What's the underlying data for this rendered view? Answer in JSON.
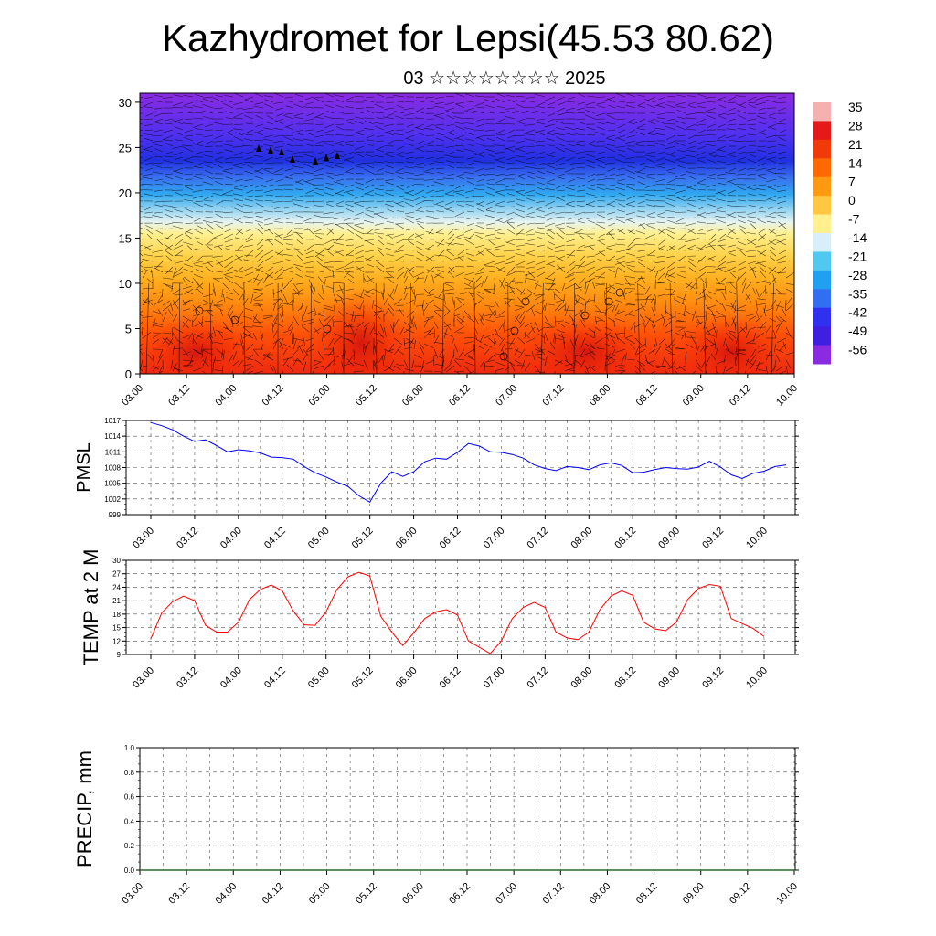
{
  "header": {
    "title": "Kazhydromet for Lepsi(45.53 80.62)",
    "subtitle": "03 ☆☆☆☆☆☆☆☆ 2025"
  },
  "colorbar": {
    "labels": [
      "35",
      "28",
      "21",
      "14",
      "7",
      "0",
      "-7",
      "-14",
      "-21",
      "-28",
      "-35",
      "-42",
      "-49",
      "-56"
    ],
    "colors": [
      "#f5b0b0",
      "#e41a1a",
      "#f03a0a",
      "#ff6a00",
      "#ff9a10",
      "#ffc840",
      "#fff090",
      "#d8eef8",
      "#50c8f0",
      "#20a0f0",
      "#3070f0",
      "#3030f0",
      "#4020e0",
      "#8a2be2"
    ]
  },
  "chart_data": [
    {
      "type": "heatmap",
      "xlabel": "",
      "ylabel": "",
      "xtick_labels": [
        "03.00",
        "03.12",
        "04.00",
        "04.12",
        "05.00",
        "05.12",
        "06.00",
        "06.12",
        "07.00",
        "07.12",
        "08.00",
        "08.12",
        "09.00",
        "09.12",
        "10.00"
      ],
      "ytick_labels": [
        "0",
        "5",
        "10",
        "15",
        "20",
        "25",
        "30"
      ],
      "ylim": [
        0,
        31
      ],
      "grid": false
    },
    {
      "type": "line",
      "ylabel": "PMSL",
      "xtick_labels": [
        "03.00",
        "03.12",
        "04.00",
        "04.12",
        "05.00",
        "05.12",
        "06.00",
        "06.12",
        "07.00",
        "07.12",
        "08.00",
        "08.12",
        "09.00",
        "09.12",
        "10.00"
      ],
      "ytick_labels": [
        "1017",
        "1014",
        "1011",
        "1008",
        "1005",
        "1002",
        "999"
      ],
      "ylim": [
        999,
        1017
      ],
      "grid": true,
      "color": "#0000ff",
      "values": [
        1016.6,
        1016.0,
        1015.2,
        1014.0,
        1013.0,
        1013.3,
        1012.2,
        1011.0,
        1011.4,
        1011.2,
        1010.8,
        1010.0,
        1009.9,
        1009.6,
        1008.2,
        1007.0,
        1006.2,
        1005.2,
        1004.4,
        1002.6,
        1001.4,
        1005.0,
        1007.2,
        1006.3,
        1007.2,
        1009.1,
        1009.8,
        1009.6,
        1010.9,
        1012.6,
        1012.1,
        1011.0,
        1010.9,
        1010.5,
        1009.8,
        1008.5,
        1007.8,
        1007.4,
        1008.2,
        1008.0,
        1007.6,
        1008.5,
        1008.9,
        1008.4,
        1007.0,
        1007.1,
        1007.6,
        1008.0,
        1007.8,
        1007.7,
        1008.1,
        1009.2,
        1008.1,
        1006.6,
        1005.9,
        1006.9,
        1007.3,
        1008.2,
        1008.5
      ],
      "x_start_day": 3.0,
      "x_step_hours": 3
    },
    {
      "type": "line",
      "ylabel": "TEMP at 2 M",
      "xtick_labels": [
        "03.00",
        "03.12",
        "04.00",
        "04.12",
        "05.00",
        "05.12",
        "06.00",
        "06.12",
        "07.00",
        "07.12",
        "08.00",
        "08.12",
        "09.00",
        "09.12",
        "10.00"
      ],
      "ytick_labels": [
        "30",
        "27",
        "24",
        "21",
        "18",
        "15",
        "12",
        "9"
      ],
      "ylim": [
        9,
        30
      ],
      "grid": true,
      "color": "#ff0000",
      "values": [
        12.5,
        18.3,
        20.8,
        22.0,
        21.0,
        15.5,
        14.0,
        14.0,
        16.2,
        21.2,
        23.5,
        24.5,
        23.2,
        18.7,
        15.6,
        15.5,
        18.5,
        23.5,
        26.3,
        27.3,
        26.5,
        17.5,
        14.0,
        11.0,
        13.8,
        17.0,
        18.5,
        19.0,
        17.8,
        12.0,
        10.6,
        9.2,
        12.0,
        17.0,
        19.5,
        20.6,
        19.5,
        14.0,
        12.7,
        12.3,
        14.0,
        19.0,
        22.0,
        23.2,
        22.2,
        16.2,
        14.7,
        14.3,
        16.2,
        21.2,
        23.7,
        24.6,
        24.2,
        17.0,
        15.9,
        14.8,
        13.0
      ],
      "x_start_day": 3.0,
      "x_step_hours": 3
    },
    {
      "type": "bar",
      "ylabel": "PRECIP, mm",
      "xtick_labels": [
        "03.00",
        "03.12",
        "04.00",
        "04.12",
        "05.00",
        "05.12",
        "06.00",
        "06.12",
        "07.00",
        "07.12",
        "08.00",
        "08.12",
        "09.00",
        "09.12",
        "10.00"
      ],
      "ytick_labels": [
        "0.0",
        "0.2",
        "0.4",
        "0.6",
        "0.8",
        "1.0"
      ],
      "ylim": [
        0,
        1.0
      ],
      "grid": true,
      "values": [
        0
      ]
    }
  ]
}
